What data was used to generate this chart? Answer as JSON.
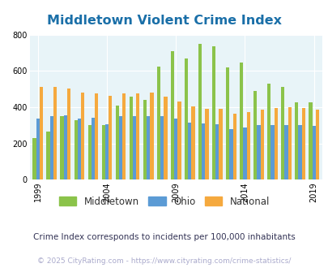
{
  "title": "Middletown Violent Crime Index",
  "subtitle": "Crime Index corresponds to incidents per 100,000 inhabitants",
  "copyright": "© 2025 CityRating.com - https://www.cityrating.com/crime-statistics/",
  "years": [
    1999,
    2000,
    2001,
    2002,
    2003,
    2004,
    2005,
    2006,
    2007,
    2008,
    2009,
    2010,
    2011,
    2012,
    2013,
    2014,
    2015,
    2016,
    2017,
    2018,
    2019
  ],
  "middletown": [
    230,
    265,
    350,
    330,
    300,
    300,
    410,
    460,
    440,
    625,
    710,
    670,
    750,
    735,
    620,
    645,
    490,
    530,
    510,
    425,
    425
  ],
  "ohio": [
    335,
    350,
    355,
    335,
    340,
    305,
    350,
    350,
    350,
    350,
    335,
    315,
    310,
    305,
    280,
    290,
    300,
    300,
    300,
    300,
    298
  ],
  "national": [
    510,
    510,
    505,
    480,
    475,
    465,
    475,
    475,
    480,
    460,
    430,
    405,
    390,
    390,
    365,
    375,
    385,
    395,
    400,
    395,
    385
  ],
  "colors": {
    "middletown": "#8bc34a",
    "ohio": "#5b9bd5",
    "national": "#f5a93e",
    "plot_bg": "#e8f4f8",
    "title": "#1a6fa8",
    "subtitle": "#333355",
    "copyright": "#aaaacc"
  },
  "ylim": [
    0,
    800
  ],
  "yticks": [
    0,
    200,
    400,
    600,
    800
  ],
  "xticks": [
    1999,
    2004,
    2009,
    2014,
    2019
  ],
  "bar_width": 0.25,
  "legend": [
    "Middletown",
    "Ohio",
    "National"
  ],
  "title_fontsize": 11.5,
  "subtitle_fontsize": 7.5,
  "copyright_fontsize": 6.5,
  "tick_fontsize": 7,
  "legend_fontsize": 8.5
}
